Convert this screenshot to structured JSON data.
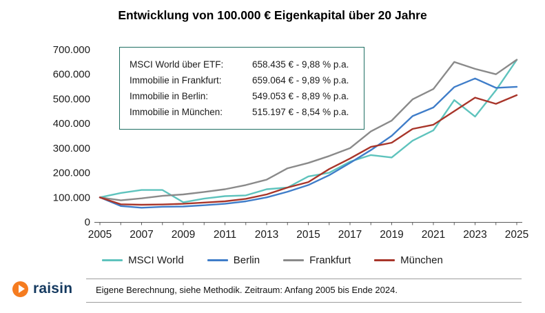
{
  "title": "Entwicklung von 100.000 € Eigenkapital über 20 Jahre",
  "chart_data": {
    "type": "line",
    "title": "Entwicklung von 100.000 € Eigenkapital über 20 Jahre",
    "xlabel": "",
    "ylabel": "",
    "grid": false,
    "legend_position": "bottom",
    "ylim": [
      0,
      700000
    ],
    "yticks": [
      0,
      100000,
      200000,
      300000,
      400000,
      500000,
      600000,
      700000
    ],
    "ytick_labels": [
      "0",
      "100.000",
      "200.000",
      "300.000",
      "400.000",
      "500.000",
      "600.000",
      "700.000"
    ],
    "xticks": [
      2005,
      2007,
      2009,
      2011,
      2013,
      2015,
      2017,
      2019,
      2021,
      2023,
      2025
    ],
    "xtick_labels": [
      "2005",
      "2007",
      "2009",
      "2011",
      "2013",
      "2015",
      "2017",
      "2019",
      "2021",
      "2023",
      "2025"
    ],
    "x": [
      2005,
      2006,
      2007,
      2008,
      2009,
      2010,
      2011,
      2012,
      2013,
      2014,
      2015,
      2016,
      2017,
      2018,
      2019,
      2020,
      2021,
      2022,
      2023,
      2024,
      2025
    ],
    "series": [
      {
        "name": "MSCI World",
        "color": "#5ec3bd",
        "values": [
          100000,
          118000,
          130000,
          130000,
          80000,
          95000,
          105000,
          108000,
          133000,
          140000,
          185000,
          200000,
          245000,
          272000,
          262000,
          330000,
          372000,
          495000,
          428000,
          535000,
          658435
        ]
      },
      {
        "name": "Berlin",
        "color": "#3f7dc9",
        "values": [
          100000,
          65000,
          58000,
          62000,
          63000,
          68000,
          74000,
          84000,
          100000,
          123000,
          150000,
          190000,
          240000,
          292000,
          350000,
          430000,
          465000,
          548000,
          583000,
          545000,
          549053
        ]
      },
      {
        "name": "Frankfurt",
        "color": "#8a8a8a",
        "values": [
          100000,
          88000,
          96000,
          106000,
          112000,
          122000,
          133000,
          150000,
          172000,
          218000,
          240000,
          268000,
          300000,
          368000,
          412000,
          498000,
          540000,
          650000,
          622000,
          600000,
          659064
        ]
      },
      {
        "name": "München",
        "color": "#a8352a",
        "values": [
          100000,
          72000,
          70000,
          71000,
          74000,
          79000,
          84000,
          94000,
          112000,
          140000,
          162000,
          215000,
          258000,
          305000,
          322000,
          378000,
          395000,
          450000,
          505000,
          480000,
          515197
        ]
      }
    ]
  },
  "infobox": {
    "rows": [
      {
        "label": "MSCI World über ETF:",
        "value": "658.435 € - 9,88 % p.a."
      },
      {
        "label": "Immobilie in Frankfurt:",
        "value": "659.064 € - 9,89 % p.a."
      },
      {
        "label": "Immobilie in Berlin:",
        "value": "549.053 € - 8,89 % p.a."
      },
      {
        "label": "Immobilie in München:",
        "value": "515.197 € - 8,54 % p.a."
      }
    ]
  },
  "legend": {
    "items": [
      {
        "label": "MSCI World",
        "color": "#5ec3bd"
      },
      {
        "label": "Berlin",
        "color": "#3f7dc9"
      },
      {
        "label": "Frankfurt",
        "color": "#8a8a8a"
      },
      {
        "label": "München",
        "color": "#a8352a"
      }
    ]
  },
  "footer": {
    "brand": "raisin",
    "note": "Eigene Berechnung, siehe Methodik. Zeitraum: Anfang 2005 bis Ende 2024.",
    "brand_color": "#14395f",
    "accent_color": "#f57c20"
  },
  "colors": {
    "infobox_border": "#1d6e62",
    "axis": "#595959",
    "tick_label": "#1a1a1a"
  }
}
